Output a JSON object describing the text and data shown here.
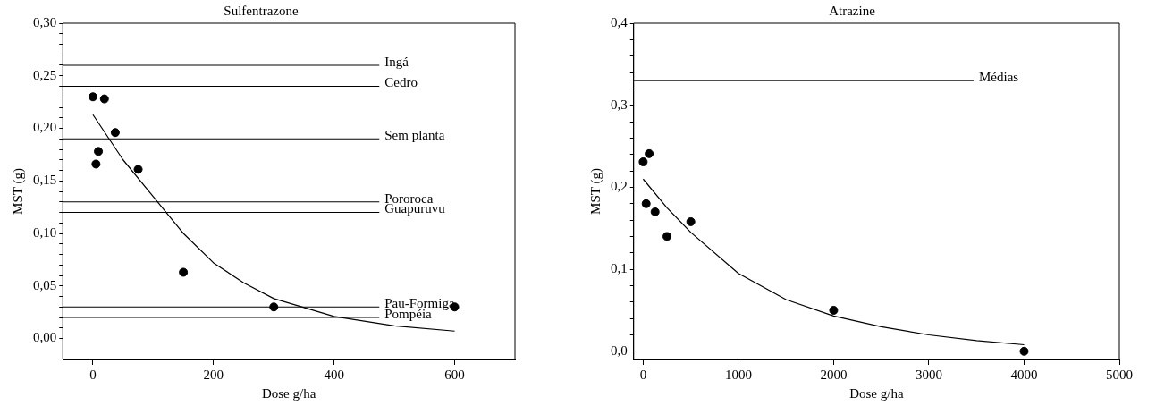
{
  "chart_data": [
    {
      "type": "scatter",
      "title": "Sulfentrazone",
      "xlabel": "Dose g/ha",
      "ylabel": "MST (g)",
      "xlim": [
        -50,
        700
      ],
      "ylim": [
        -0.02,
        0.3
      ],
      "xticks": [
        0,
        200,
        400,
        600
      ],
      "yticks": [
        {
          "value": 0,
          "label": "0,00"
        },
        {
          "value": 0.01,
          "label": null
        },
        {
          "value": 0.02,
          "label": null
        },
        {
          "value": 0.03,
          "label": null
        },
        {
          "value": 0.04,
          "label": null
        },
        {
          "value": 0.05,
          "label": "0,05"
        },
        {
          "value": 0.06,
          "label": null
        },
        {
          "value": 0.07,
          "label": null
        },
        {
          "value": 0.08,
          "label": null
        },
        {
          "value": 0.09,
          "label": null
        },
        {
          "value": 0.1,
          "label": "0,10"
        },
        {
          "value": 0.11,
          "label": null
        },
        {
          "value": 0.12,
          "label": null
        },
        {
          "value": 0.13,
          "label": null
        },
        {
          "value": 0.14,
          "label": null
        },
        {
          "value": 0.15,
          "label": "0,15"
        },
        {
          "value": 0.16,
          "label": null
        },
        {
          "value": 0.17,
          "label": null
        },
        {
          "value": 0.18,
          "label": null
        },
        {
          "value": 0.19,
          "label": null
        },
        {
          "value": 0.2,
          "label": "0,20"
        },
        {
          "value": 0.21,
          "label": null
        },
        {
          "value": 0.22,
          "label": null
        },
        {
          "value": 0.23,
          "label": null
        },
        {
          "value": 0.24,
          "label": null
        },
        {
          "value": 0.25,
          "label": "0,25"
        },
        {
          "value": 0.26,
          "label": null
        },
        {
          "value": 0.27,
          "label": null
        },
        {
          "value": 0.28,
          "label": null
        },
        {
          "value": 0.29,
          "label": null
        },
        {
          "value": 0.3,
          "label": "0,30"
        }
      ],
      "grid": false,
      "legend": false,
      "marker": "circle",
      "series": [
        {
          "type": "scatter",
          "color": "#000000",
          "x": [
            0,
            5,
            9,
            19,
            37,
            75,
            150,
            300,
            600
          ],
          "values": [
            0.23,
            0.166,
            0.178,
            0.228,
            0.196,
            0.161,
            0.063,
            0.03,
            0.03
          ]
        },
        {
          "type": "line",
          "color": "#000000",
          "marker": "none",
          "line_style": "solid",
          "x": [
            0,
            50,
            100,
            150,
            200,
            250,
            300,
            400,
            500,
            600
          ],
          "values": [
            0.213,
            0.17,
            0.135,
            0.1,
            0.072,
            0.053,
            0.038,
            0.021,
            0.012,
            0.007
          ]
        }
      ],
      "ref_lines": [
        {
          "axis": "y",
          "value": 0.26,
          "label": "Ingá"
        },
        {
          "axis": "y",
          "value": 0.24,
          "label": "Cedro"
        },
        {
          "axis": "y",
          "value": 0.19,
          "label": "Sem planta"
        },
        {
          "axis": "y",
          "value": 0.13,
          "label": "Pororoca"
        },
        {
          "axis": "y",
          "value": 0.12,
          "label": "Guapuruvu"
        },
        {
          "axis": "y",
          "value": 0.03,
          "label": "Pau-Formiga"
        },
        {
          "axis": "y",
          "value": 0.02,
          "label": "Pompéia"
        }
      ]
    },
    {
      "type": "scatter",
      "title": "Atrazine",
      "xlabel": "Dose g/ha",
      "ylabel": "MST (g)",
      "xlim": [
        -100,
        5000
      ],
      "ylim": [
        -0.01,
        0.4
      ],
      "xticks": [
        0,
        1000,
        2000,
        3000,
        4000,
        5000
      ],
      "yticks": [
        {
          "value": 0,
          "label": "0,0"
        },
        {
          "value": 0.02,
          "label": null
        },
        {
          "value": 0.04,
          "label": null
        },
        {
          "value": 0.06,
          "label": null
        },
        {
          "value": 0.08,
          "label": null
        },
        {
          "value": 0.1,
          "label": "0,1"
        },
        {
          "value": 0.12,
          "label": null
        },
        {
          "value": 0.14,
          "label": null
        },
        {
          "value": 0.16,
          "label": null
        },
        {
          "value": 0.18,
          "label": null
        },
        {
          "value": 0.2,
          "label": "0,2"
        },
        {
          "value": 0.22,
          "label": null
        },
        {
          "value": 0.24,
          "label": null
        },
        {
          "value": 0.26,
          "label": null
        },
        {
          "value": 0.28,
          "label": null
        },
        {
          "value": 0.3,
          "label": "0,3"
        },
        {
          "value": 0.32,
          "label": null
        },
        {
          "value": 0.34,
          "label": null
        },
        {
          "value": 0.36,
          "label": null
        },
        {
          "value": 0.38,
          "label": null
        },
        {
          "value": 0.4,
          "label": "0,4"
        }
      ],
      "grid": false,
      "legend": false,
      "marker": "circle",
      "series": [
        {
          "type": "scatter",
          "color": "#000000",
          "x": [
            0,
            31,
            63,
            125,
            250,
            500,
            2000,
            4000
          ],
          "values": [
            0.231,
            0.18,
            0.241,
            0.17,
            0.14,
            0.158,
            0.05,
            0.0
          ]
        },
        {
          "type": "line",
          "color": "#000000",
          "marker": "none",
          "line_style": "solid",
          "x": [
            0,
            250,
            500,
            1000,
            1500,
            2000,
            2500,
            3000,
            3500,
            4000
          ],
          "values": [
            0.21,
            0.175,
            0.145,
            0.095,
            0.063,
            0.043,
            0.03,
            0.02,
            0.013,
            0.008
          ]
        }
      ],
      "ref_lines": [
        {
          "axis": "y",
          "value": 0.33,
          "label": "Médias"
        }
      ]
    }
  ]
}
